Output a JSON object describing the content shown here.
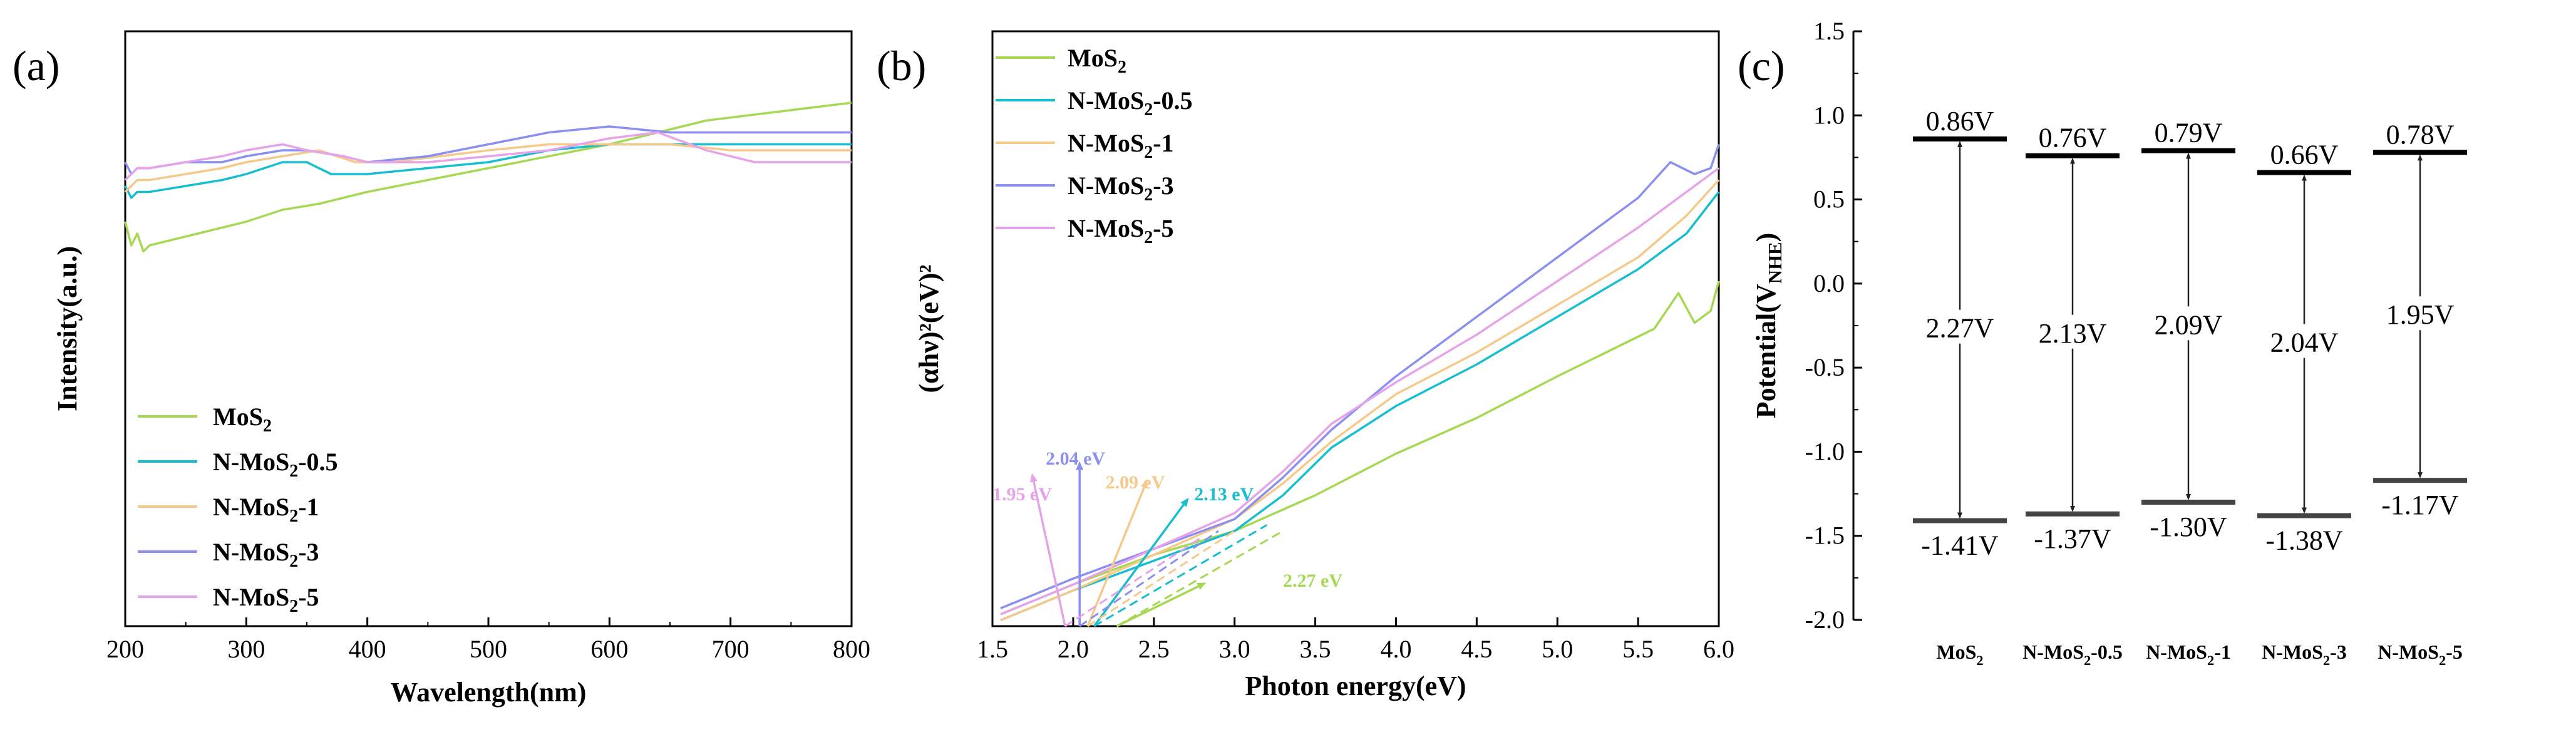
{
  "panel_labels": [
    "(a)",
    "(b)",
    "(c)"
  ],
  "colors": {
    "MoS2": "#a6d854",
    "N-MoS2-0.5": "#17becf",
    "N-MoS2-1": "#f5c98a",
    "N-MoS2-3": "#8a8ff0",
    "N-MoS2-5": "#e6a3ea"
  },
  "chart_data": [
    {
      "id": "a",
      "type": "line",
      "xlabel": "Wavelength(nm)",
      "ylabel": "Intensity(a.u.)",
      "xlim": [
        200,
        800
      ],
      "ylim": [
        0,
        1
      ],
      "xticks": [
        200,
        300,
        400,
        500,
        600,
        700,
        800
      ],
      "legend": "bottom-left",
      "series": [
        {
          "key": "MoS2",
          "label": "MoS",
          "sub": "2",
          "suffix": "",
          "x": [
            200,
            205,
            210,
            215,
            220,
            240,
            260,
            280,
            300,
            330,
            360,
            400,
            450,
            500,
            550,
            600,
            640,
            680,
            720,
            760,
            800
          ],
          "y": [
            0.68,
            0.64,
            0.66,
            0.63,
            0.64,
            0.65,
            0.66,
            0.67,
            0.68,
            0.7,
            0.71,
            0.73,
            0.75,
            0.77,
            0.79,
            0.81,
            0.83,
            0.85,
            0.86,
            0.87,
            0.88
          ]
        },
        {
          "key": "N-MoS2-0.5",
          "label": "N-MoS",
          "sub": "2",
          "suffix": "-0.5",
          "x": [
            200,
            205,
            210,
            220,
            250,
            280,
            300,
            330,
            350,
            370,
            400,
            450,
            500,
            550,
            600,
            650,
            700,
            750,
            800
          ],
          "y": [
            0.74,
            0.72,
            0.73,
            0.73,
            0.74,
            0.75,
            0.76,
            0.78,
            0.78,
            0.76,
            0.76,
            0.77,
            0.78,
            0.8,
            0.81,
            0.81,
            0.81,
            0.81,
            0.81
          ]
        },
        {
          "key": "N-MoS2-1",
          "label": "N-MoS",
          "sub": "2",
          "suffix": "-1",
          "x": [
            200,
            205,
            210,
            220,
            250,
            280,
            300,
            330,
            360,
            390,
            420,
            460,
            500,
            550,
            600,
            650,
            700,
            750,
            800
          ],
          "y": [
            0.73,
            0.74,
            0.75,
            0.75,
            0.76,
            0.77,
            0.78,
            0.79,
            0.8,
            0.78,
            0.78,
            0.79,
            0.8,
            0.81,
            0.81,
            0.81,
            0.8,
            0.8,
            0.8
          ]
        },
        {
          "key": "N-MoS2-3",
          "label": "N-MoS",
          "sub": "2",
          "suffix": "-3",
          "x": [
            200,
            205,
            210,
            220,
            250,
            280,
            300,
            330,
            350,
            380,
            400,
            450,
            500,
            550,
            600,
            650,
            700,
            750,
            800
          ],
          "y": [
            0.78,
            0.76,
            0.77,
            0.77,
            0.78,
            0.78,
            0.79,
            0.8,
            0.8,
            0.79,
            0.78,
            0.79,
            0.81,
            0.83,
            0.84,
            0.83,
            0.83,
            0.83,
            0.83
          ]
        },
        {
          "key": "N-MoS2-5",
          "label": "N-MoS",
          "sub": "2",
          "suffix": "-5",
          "x": [
            200,
            205,
            210,
            220,
            250,
            280,
            300,
            330,
            350,
            380,
            400,
            450,
            500,
            550,
            600,
            640,
            680,
            720,
            760,
            800
          ],
          "y": [
            0.75,
            0.76,
            0.77,
            0.77,
            0.78,
            0.79,
            0.8,
            0.81,
            0.8,
            0.79,
            0.78,
            0.78,
            0.79,
            0.8,
            0.82,
            0.83,
            0.8,
            0.78,
            0.78,
            0.78
          ]
        }
      ]
    },
    {
      "id": "b",
      "type": "line",
      "xlabel": "Photon energy(eV)",
      "ylabel": "(αhν)²(eV)²",
      "xlim": [
        1.5,
        6.0
      ],
      "ylim": [
        0,
        1
      ],
      "xticks": [
        1.5,
        2.0,
        2.5,
        3.0,
        3.5,
        4.0,
        4.5,
        5.0,
        5.5,
        6.0
      ],
      "legend": "top-left",
      "series": [
        {
          "key": "MoS2",
          "label": "MoS",
          "sub": "2",
          "suffix": "",
          "x": [
            1.55,
            2.0,
            2.5,
            3.0,
            3.5,
            4.0,
            4.5,
            5.0,
            5.3,
            5.6,
            5.75,
            5.85,
            5.95,
            6.0
          ],
          "y": [
            0.02,
            0.07,
            0.12,
            0.16,
            0.22,
            0.29,
            0.35,
            0.42,
            0.46,
            0.5,
            0.56,
            0.51,
            0.53,
            0.58
          ]
        },
        {
          "key": "N-MoS2-0.5",
          "label": "N-MoS",
          "sub": "2",
          "suffix": "-0.5",
          "x": [
            1.55,
            2.0,
            2.5,
            3.0,
            3.3,
            3.6,
            4.0,
            4.5,
            5.0,
            5.5,
            5.8,
            6.0
          ],
          "y": [
            0.01,
            0.06,
            0.11,
            0.16,
            0.22,
            0.3,
            0.37,
            0.44,
            0.52,
            0.6,
            0.66,
            0.73
          ]
        },
        {
          "key": "N-MoS2-1",
          "label": "N-MoS",
          "sub": "2",
          "suffix": "-1",
          "x": [
            1.55,
            2.0,
            2.5,
            3.0,
            3.3,
            3.6,
            4.0,
            4.5,
            5.0,
            5.5,
            5.8,
            6.0
          ],
          "y": [
            0.01,
            0.06,
            0.12,
            0.18,
            0.24,
            0.31,
            0.39,
            0.46,
            0.54,
            0.62,
            0.69,
            0.75
          ]
        },
        {
          "key": "N-MoS2-3",
          "label": "N-MoS",
          "sub": "2",
          "suffix": "-3",
          "x": [
            1.55,
            2.0,
            2.5,
            3.0,
            3.3,
            3.6,
            4.0,
            4.5,
            5.0,
            5.5,
            5.7,
            5.85,
            5.95,
            6.0
          ],
          "y": [
            0.03,
            0.08,
            0.13,
            0.18,
            0.25,
            0.33,
            0.42,
            0.52,
            0.62,
            0.72,
            0.78,
            0.76,
            0.77,
            0.81
          ]
        },
        {
          "key": "N-MoS2-5",
          "label": "N-MoS",
          "sub": "2",
          "suffix": "-5",
          "x": [
            1.55,
            2.0,
            2.5,
            3.0,
            3.3,
            3.6,
            4.0,
            4.5,
            5.0,
            5.5,
            5.8,
            6.0
          ],
          "y": [
            0.02,
            0.07,
            0.13,
            0.19,
            0.26,
            0.34,
            0.41,
            0.49,
            0.58,
            0.67,
            0.73,
            0.77
          ]
        }
      ],
      "band_gaps": [
        {
          "key": "MoS2",
          "value": 2.27,
          "label": "2.27 eV"
        },
        {
          "key": "N-MoS2-0.5",
          "value": 2.13,
          "label": "2.13 eV"
        },
        {
          "key": "N-MoS2-1",
          "value": 2.09,
          "label": "2.09 eV"
        },
        {
          "key": "N-MoS2-3",
          "value": 2.04,
          "label": "2.04 eV"
        },
        {
          "key": "N-MoS2-5",
          "value": 1.95,
          "label": "1.95 eV"
        }
      ]
    },
    {
      "id": "c",
      "type": "band_diagram",
      "ylabel": "Potential(V",
      "ylabel_sub": "NHE",
      "ylabel_end": ")",
      "ylim": [
        -2.0,
        1.5
      ],
      "yticks": [
        1.5,
        1.0,
        0.5,
        0.0,
        -0.5,
        -1.0,
        -1.5,
        -2.0
      ],
      "ytick_labels": [
        "1.5",
        "1.0",
        "0.5",
        "0.0",
        "-0.5",
        "-1.0",
        "-1.5",
        "-2.0"
      ],
      "samples": [
        {
          "name": "MoS",
          "sub": "2",
          "suffix": "",
          "vb": 0.86,
          "cb": -1.41,
          "vb_label": "0.86V",
          "cb_label": "-1.41V",
          "gap_label": "2.27V"
        },
        {
          "name": "N-MoS",
          "sub": "2",
          "suffix": "-0.5",
          "vb": 0.76,
          "cb": -1.37,
          "vb_label": "0.76V",
          "cb_label": "-1.37V",
          "gap_label": "2.13V"
        },
        {
          "name": "N-MoS",
          "sub": "2",
          "suffix": "-1",
          "vb": 0.79,
          "cb": -1.3,
          "vb_label": "0.79V",
          "cb_label": "-1.30V",
          "gap_label": "2.09V"
        },
        {
          "name": "N-MoS",
          "sub": "2",
          "suffix": "-3",
          "vb": 0.66,
          "cb": -1.38,
          "vb_label": "0.66V",
          "cb_label": "-1.38V",
          "gap_label": "2.04V"
        },
        {
          "name": "N-MoS",
          "sub": "2",
          "suffix": "-5",
          "vb": 0.78,
          "cb": -1.17,
          "vb_label": "0.78V",
          "cb_label": "-1.17V",
          "gap_label": "1.95V"
        }
      ]
    }
  ]
}
